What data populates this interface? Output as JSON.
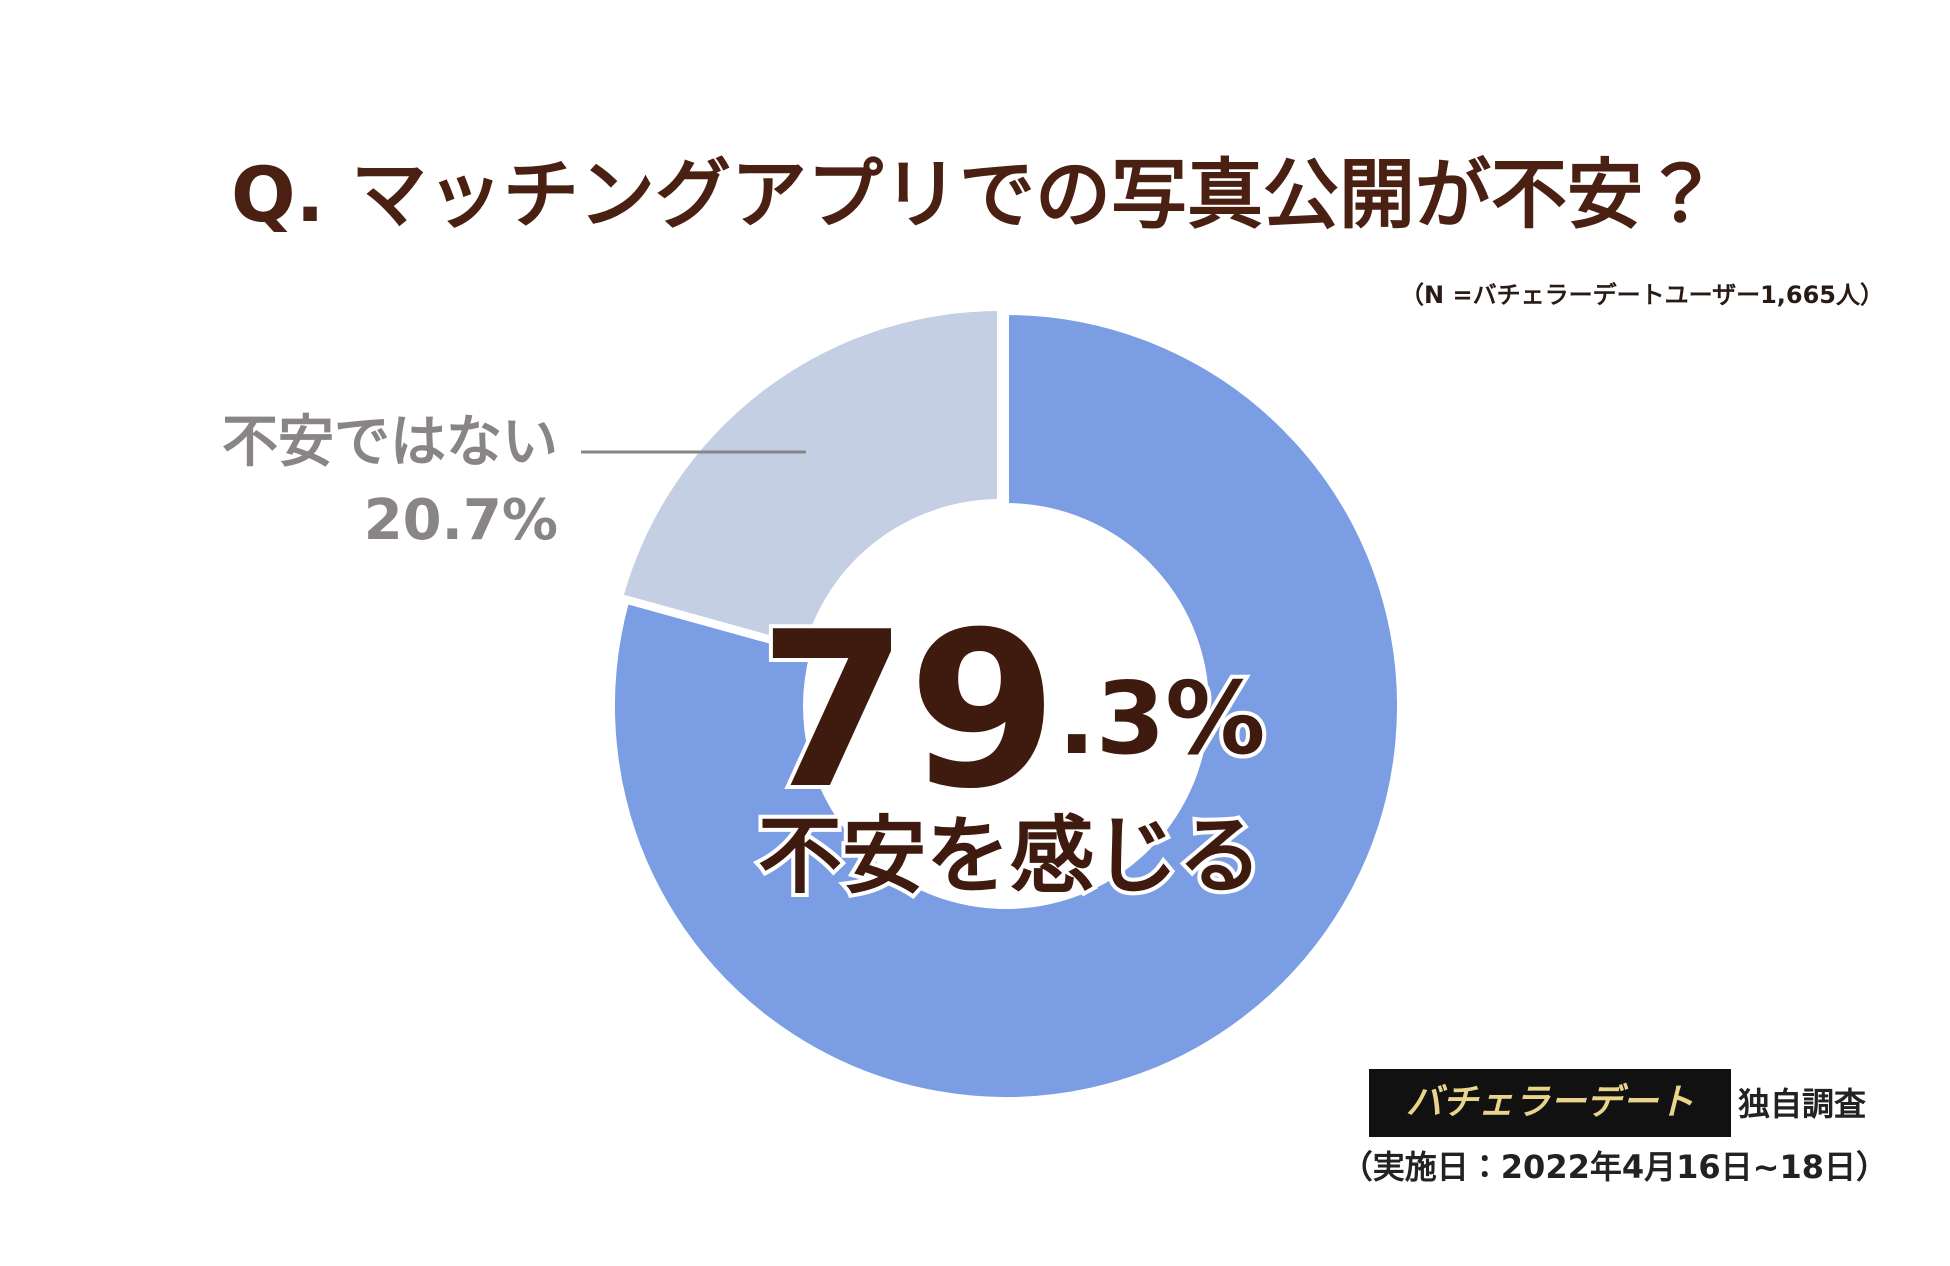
{
  "chart_data": {
    "type": "pie",
    "title": "Q. マッチングアプリでの写真公開が不安？",
    "subtitle": "（N =バチェラーデートユーザー1,665人）",
    "categories": [
      "不安を感じる",
      "不安ではない"
    ],
    "values": [
      79.3,
      20.7
    ],
    "value_labels": [
      "79.3%",
      "20.7%"
    ],
    "colors": [
      "#7a9de3",
      "#c4cfe4"
    ],
    "source": {
      "brand": "バチェラーデート",
      "label": "独自調査"
    },
    "date_note": "（実施日：2022年4月16日~18日）"
  }
}
